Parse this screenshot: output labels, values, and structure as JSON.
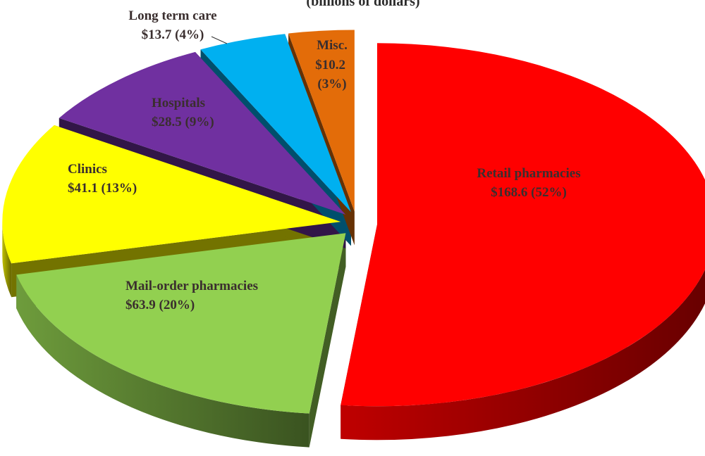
{
  "chart_data": {
    "type": "pie3d",
    "subtitle": "(billions of dollars)",
    "categories": [
      "Retail pharmacies",
      "Mail-order pharmacies",
      "Clinics",
      "Hospitals",
      "Long term care",
      "Misc."
    ],
    "values": [
      168.6,
      63.9,
      41.1,
      28.5,
      13.7,
      10.2
    ],
    "value_labels": [
      "$168.6 (52%)",
      "$63.9 (20%)",
      "$41.1 (13%)",
      "$28.5 (9%)",
      "$13.7 (4%)",
      "$10.2 (3%)"
    ],
    "colors": [
      "#ff0000",
      "#92d050",
      "#ffff00",
      "#7030a0",
      "#00b0f0",
      "#e36c09"
    ]
  }
}
